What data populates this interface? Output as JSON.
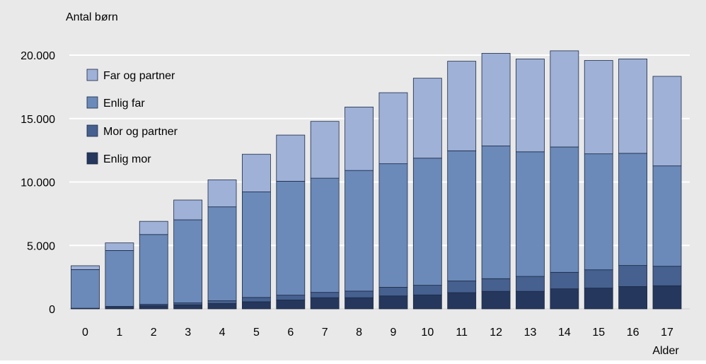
{
  "chart_data": {
    "type": "bar",
    "stacked": true,
    "ylabel": "Antal børn",
    "xlabel": "Alder",
    "ylim": [
      0,
      22000
    ],
    "y_ticks": [
      0,
      5000,
      10000,
      15000,
      20000
    ],
    "y_tick_labels": [
      "0",
      "5.000",
      "10.000",
      "15.000",
      "20.000"
    ],
    "categories": [
      "0",
      "1",
      "2",
      "3",
      "4",
      "5",
      "6",
      "7",
      "8",
      "9",
      "10",
      "11",
      "12",
      "13",
      "14",
      "15",
      "16",
      "17"
    ],
    "grid": true,
    "legend_position": "top-left",
    "series": [
      {
        "name": "Enlig mor",
        "color": "#25375c",
        "values": [
          20,
          120,
          260,
          320,
          420,
          560,
          700,
          880,
          880,
          1020,
          1100,
          1280,
          1380,
          1380,
          1580,
          1640,
          1760,
          1820
        ]
      },
      {
        "name": "Mor og partner",
        "color": "#46608f",
        "values": [
          30,
          80,
          100,
          150,
          220,
          340,
          380,
          420,
          520,
          680,
          760,
          920,
          1000,
          1180,
          1300,
          1440,
          1660,
          1540
        ]
      },
      {
        "name": "Enlig far",
        "color": "#6b8ab9",
        "values": [
          3050,
          4400,
          5500,
          6550,
          7400,
          8320,
          8980,
          9000,
          9510,
          9740,
          10020,
          10260,
          10460,
          9820,
          9880,
          9140,
          8840,
          7910
        ]
      },
      {
        "name": "Far og partner",
        "color": "#9fb1d7",
        "values": [
          300,
          600,
          1040,
          1560,
          2130,
          2970,
          3640,
          4480,
          5000,
          5600,
          6300,
          7060,
          7300,
          7320,
          7580,
          7360,
          7440,
          7060
        ]
      }
    ],
    "colors": {
      "background": "#e9e9e9",
      "gridline": "#ffffff",
      "bar_outline": "#1b2a47"
    }
  }
}
